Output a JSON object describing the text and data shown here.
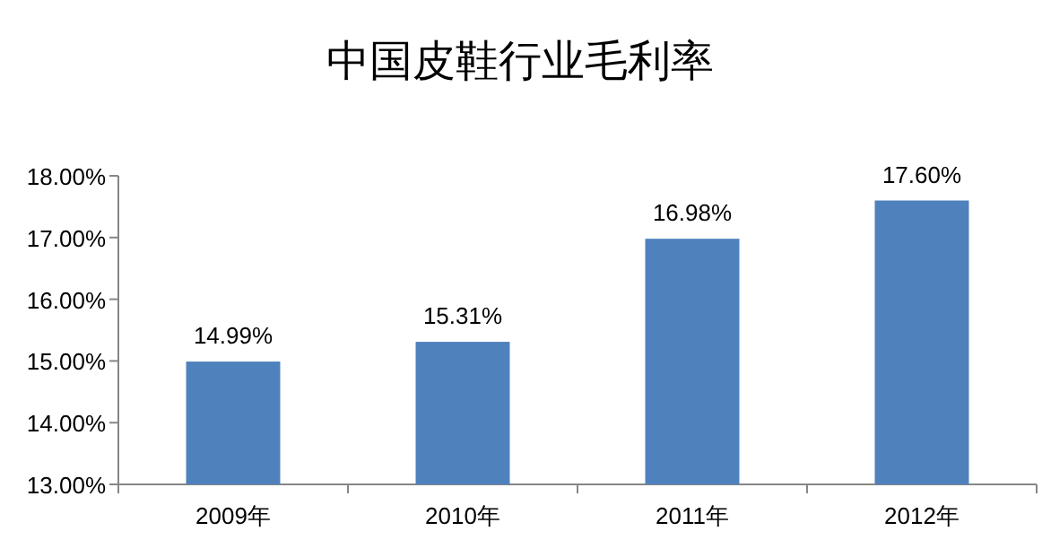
{
  "chart_data": {
    "type": "bar",
    "title": "中国皮鞋行业毛利率",
    "categories": [
      "2009年",
      "2010年",
      "2011年",
      "2012年"
    ],
    "values": [
      14.99,
      15.31,
      16.98,
      17.6
    ],
    "value_labels": [
      "14.99%",
      "15.31%",
      "16.98%",
      "17.60%"
    ],
    "color": "#4f81bd",
    "ylim": [
      13,
      18
    ],
    "yticks": [
      {
        "value": 13,
        "label": "13.00%"
      },
      {
        "value": 14,
        "label": "14.00%"
      },
      {
        "value": 15,
        "label": "15.00%"
      },
      {
        "value": 16,
        "label": "16.00%"
      },
      {
        "value": 17,
        "label": "17.00%"
      },
      {
        "value": 18,
        "label": "18.00%"
      }
    ],
    "grid": false,
    "legend": false
  }
}
